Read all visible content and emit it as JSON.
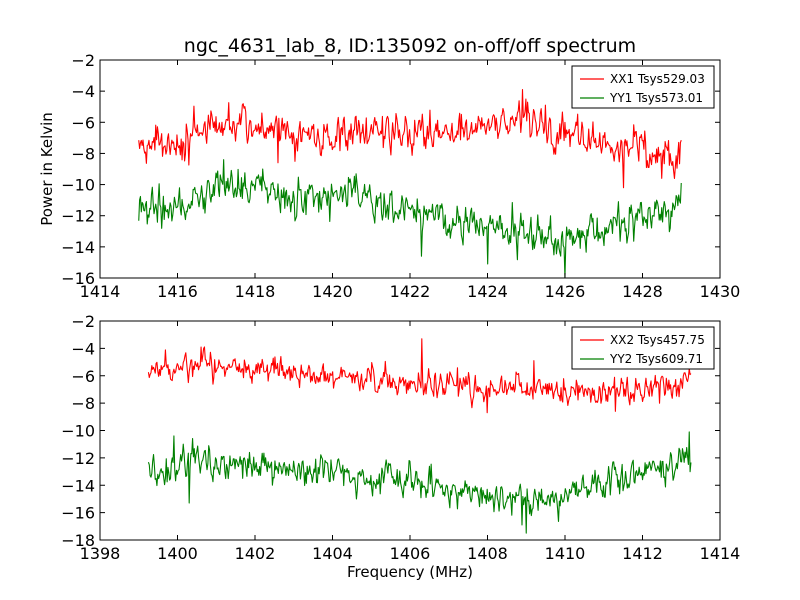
{
  "chart_data": [
    {
      "type": "line",
      "title": "ngc_4631_lab_8, ID:135092 on-off/off spectrum",
      "xlabel": "",
      "ylabel": "Power in Kelvin",
      "xlim": [
        1414,
        1430
      ],
      "ylim": [
        -16,
        -2
      ],
      "xticks": [
        1414,
        1416,
        1418,
        1420,
        1422,
        1424,
        1426,
        1428,
        1430
      ],
      "yticks": [
        -2,
        -4,
        -6,
        -8,
        -10,
        -12,
        -14,
        -16
      ],
      "x_range": [
        1415.0,
        1429.0
      ],
      "legend_position": "top-right",
      "series": [
        {
          "name": "XX1 Tsys529.03",
          "color": "#ff0000",
          "noise": 0.75,
          "seed": 11,
          "knots": [
            [
              1415.0,
              -7.3
            ],
            [
              1416.0,
              -7.5
            ],
            [
              1416.5,
              -7.0
            ],
            [
              1417.0,
              -6.5
            ],
            [
              1418.0,
              -6.2
            ],
            [
              1419.0,
              -6.8
            ],
            [
              1420.0,
              -6.9
            ],
            [
              1421.0,
              -6.6
            ],
            [
              1422.0,
              -6.8
            ],
            [
              1423.0,
              -6.5
            ],
            [
              1424.0,
              -6.4
            ],
            [
              1424.5,
              -6.1
            ],
            [
              1425.0,
              -6.2
            ],
            [
              1426.0,
              -6.6
            ],
            [
              1427.0,
              -7.4
            ],
            [
              1428.0,
              -7.6
            ],
            [
              1428.5,
              -7.9
            ],
            [
              1429.0,
              -8.2
            ]
          ],
          "spikes": [
            [
              1418.6,
              -8.6
            ],
            [
              1424.9,
              -3.9
            ],
            [
              1425.5,
              -4.9
            ],
            [
              1427.5,
              -10.2
            ],
            [
              1428.5,
              -9.6
            ]
          ]
        },
        {
          "name": "YY1 Tsys573.01",
          "color": "#008000",
          "noise": 0.75,
          "seed": 23,
          "knots": [
            [
              1415.0,
              -11.4
            ],
            [
              1416.0,
              -11.6
            ],
            [
              1416.5,
              -11.0
            ],
            [
              1417.0,
              -10.0
            ],
            [
              1418.0,
              -10.2
            ],
            [
              1419.0,
              -10.9
            ],
            [
              1420.0,
              -10.8
            ],
            [
              1420.5,
              -10.4
            ],
            [
              1421.0,
              -11.0
            ],
            [
              1422.0,
              -11.6
            ],
            [
              1423.0,
              -12.4
            ],
            [
              1424.0,
              -12.9
            ],
            [
              1425.0,
              -13.1
            ],
            [
              1426.0,
              -13.5
            ],
            [
              1427.0,
              -13.0
            ],
            [
              1428.0,
              -12.0
            ],
            [
              1429.0,
              -11.2
            ]
          ],
          "spikes": [
            [
              1417.2,
              -8.4
            ],
            [
              1422.3,
              -14.6
            ],
            [
              1424.0,
              -15.1
            ],
            [
              1426.0,
              -16.0
            ],
            [
              1429.0,
              -9.9
            ]
          ]
        }
      ]
    },
    {
      "type": "line",
      "title": "",
      "xlabel": "Frequency (MHz)",
      "ylabel": "",
      "xlim": [
        1398,
        1414
      ],
      "ylim": [
        -18,
        -2
      ],
      "xticks": [
        1398,
        1400,
        1402,
        1404,
        1406,
        1408,
        1410,
        1412,
        1414
      ],
      "yticks": [
        -2,
        -4,
        -6,
        -8,
        -10,
        -12,
        -14,
        -16,
        -18
      ],
      "x_range": [
        1399.25,
        1413.25
      ],
      "legend_position": "top-right",
      "series": [
        {
          "name": "XX2 Tsys457.75",
          "color": "#ff0000",
          "noise": 0.65,
          "seed": 37,
          "knots": [
            [
              1399.25,
              -5.6
            ],
            [
              1400.0,
              -5.3
            ],
            [
              1401.0,
              -5.2
            ],
            [
              1402.0,
              -5.5
            ],
            [
              1403.0,
              -5.7
            ],
            [
              1404.0,
              -6.2
            ],
            [
              1405.0,
              -6.3
            ],
            [
              1406.0,
              -6.4
            ],
            [
              1407.0,
              -6.7
            ],
            [
              1408.0,
              -6.9
            ],
            [
              1409.0,
              -6.8
            ],
            [
              1410.0,
              -7.2
            ],
            [
              1411.0,
              -7.4
            ],
            [
              1412.0,
              -6.9
            ],
            [
              1413.25,
              -6.4
            ]
          ],
          "spikes": [
            [
              1406.3,
              -3.3
            ],
            [
              1409.2,
              -4.9
            ],
            [
              1408.0,
              -8.7
            ],
            [
              1400.6,
              -3.9
            ],
            [
              1411.3,
              -8.6
            ]
          ]
        },
        {
          "name": "YY2 Tsys609.71",
          "color": "#008000",
          "noise": 0.75,
          "seed": 51,
          "knots": [
            [
              1399.25,
              -12.9
            ],
            [
              1400.0,
              -12.6
            ],
            [
              1401.0,
              -12.5
            ],
            [
              1402.0,
              -12.8
            ],
            [
              1403.0,
              -12.9
            ],
            [
              1404.0,
              -13.0
            ],
            [
              1405.0,
              -13.4
            ],
            [
              1406.0,
              -13.6
            ],
            [
              1407.0,
              -14.2
            ],
            [
              1408.0,
              -15.0
            ],
            [
              1409.0,
              -15.3
            ],
            [
              1410.0,
              -14.7
            ],
            [
              1411.0,
              -13.9
            ],
            [
              1412.0,
              -12.8
            ],
            [
              1413.25,
              -12.2
            ]
          ],
          "spikes": [
            [
              1399.9,
              -10.4
            ],
            [
              1409.0,
              -17.5
            ],
            [
              1400.3,
              -15.3
            ],
            [
              1413.2,
              -10.1
            ],
            [
              1408.9,
              -16.9
            ]
          ]
        }
      ]
    }
  ]
}
